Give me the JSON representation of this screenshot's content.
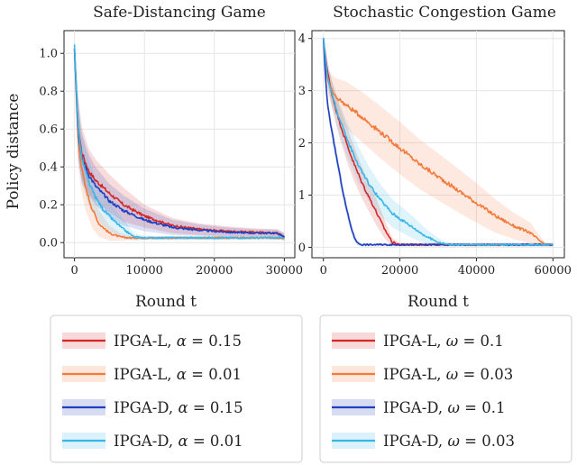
{
  "figure": {
    "y_axis_label": "Policy distance",
    "x_axis_label": "Round t"
  },
  "chart_data": [
    {
      "type": "line",
      "title": "Safe-Distancing Game",
      "xlabel": "Round t",
      "ylabel": "Policy distance",
      "xlim": [
        -1500,
        31500
      ],
      "ylim": [
        -0.08,
        1.12
      ],
      "xticks": [
        0,
        10000,
        20000,
        30000
      ],
      "xtick_labels": [
        "0",
        "10000",
        "20000",
        "30000"
      ],
      "yticks": [
        0.0,
        0.2,
        0.4,
        0.6,
        0.8,
        1.0
      ],
      "ytick_labels": [
        "0.0",
        "0.2",
        "0.4",
        "0.6",
        "0.8",
        "1.0"
      ],
      "grid": true,
      "series": [
        {
          "name": "IPGA-L, α = 0.15",
          "color": "#d62728",
          "x": [
            0,
            500,
            1000,
            2000,
            3000,
            5000,
            7000,
            10000,
            14000,
            18000,
            22000,
            26000,
            29000,
            30000
          ],
          "y": [
            1.02,
            0.62,
            0.48,
            0.38,
            0.33,
            0.26,
            0.2,
            0.14,
            0.09,
            0.07,
            0.06,
            0.055,
            0.05,
            0.03
          ],
          "band": [
            0.03,
            0.16,
            0.14,
            0.12,
            0.11,
            0.1,
            0.09,
            0.06,
            0.04,
            0.03,
            0.025,
            0.02,
            0.02,
            0.02
          ]
        },
        {
          "name": "IPGA-L, α = 0.01",
          "color": "#f4793a",
          "x": [
            0,
            500,
            1000,
            1500,
            2500,
            3500,
            5000,
            6500,
            8000,
            10000,
            30000
          ],
          "y": [
            1.02,
            0.55,
            0.4,
            0.3,
            0.18,
            0.1,
            0.05,
            0.03,
            0.025,
            0.025,
            0.025
          ],
          "band": [
            0.03,
            0.14,
            0.13,
            0.12,
            0.1,
            0.07,
            0.04,
            0.02,
            0.01,
            0.01,
            0.01
          ]
        },
        {
          "name": "IPGA-D, α = 0.15",
          "color": "#1f3fbf",
          "x": [
            0,
            500,
            1000,
            2000,
            3000,
            5000,
            7000,
            10000,
            14000,
            18000,
            22000,
            26000,
            29000,
            30000
          ],
          "y": [
            1.03,
            0.6,
            0.45,
            0.36,
            0.3,
            0.22,
            0.17,
            0.12,
            0.08,
            0.065,
            0.055,
            0.05,
            0.05,
            0.03
          ],
          "band": [
            0.03,
            0.15,
            0.13,
            0.11,
            0.1,
            0.09,
            0.08,
            0.06,
            0.04,
            0.03,
            0.025,
            0.02,
            0.02,
            0.02
          ]
        },
        {
          "name": "IPGA-D, α = 0.01",
          "color": "#36b7e8",
          "x": [
            0,
            500,
            1000,
            2000,
            3000,
            4000,
            5500,
            7000,
            8500,
            10000,
            30000
          ],
          "y": [
            1.05,
            0.62,
            0.45,
            0.32,
            0.24,
            0.18,
            0.12,
            0.07,
            0.03,
            0.025,
            0.025
          ],
          "band": [
            0.03,
            0.15,
            0.13,
            0.12,
            0.1,
            0.09,
            0.07,
            0.05,
            0.02,
            0.01,
            0.01
          ]
        }
      ]
    },
    {
      "type": "line",
      "title": "Stochastic Congestion Game",
      "xlabel": "Round t",
      "ylabel": "Policy distance",
      "xlim": [
        -3000,
        63000
      ],
      "ylim": [
        -0.2,
        4.15
      ],
      "xticks": [
        0,
        20000,
        40000,
        60000
      ],
      "xtick_labels": [
        "0",
        "20000",
        "40000",
        "60000"
      ],
      "yticks": [
        0,
        1,
        2,
        3,
        4
      ],
      "ytick_labels": [
        "0",
        "1",
        "2",
        "3",
        "4"
      ],
      "grid": true,
      "series": [
        {
          "name": "IPGA-L, ω = 0.1",
          "color": "#d62728",
          "x": [
            0,
            1000,
            2000,
            4000,
            6000,
            8000,
            10000,
            12000,
            14000,
            16000,
            18000,
            20000,
            22000,
            60000
          ],
          "y": [
            4.0,
            3.4,
            3.0,
            2.45,
            2.0,
            1.6,
            1.25,
            0.95,
            0.65,
            0.35,
            0.1,
            0.05,
            0.05,
            0.05
          ],
          "band": [
            0.02,
            0.2,
            0.25,
            0.3,
            0.33,
            0.33,
            0.3,
            0.28,
            0.25,
            0.18,
            0.08,
            0.03,
            0.03,
            0.03
          ]
        },
        {
          "name": "IPGA-L, ω = 0.03",
          "color": "#f4793a",
          "x": [
            0,
            1000,
            3000,
            6000,
            10000,
            15000,
            20000,
            25000,
            30000,
            35000,
            40000,
            45000,
            50000,
            54000,
            57000,
            58000,
            60000
          ],
          "y": [
            4.0,
            3.2,
            2.9,
            2.72,
            2.5,
            2.2,
            1.9,
            1.6,
            1.35,
            1.1,
            0.85,
            0.6,
            0.4,
            0.28,
            0.1,
            0.05,
            0.05
          ],
          "band": [
            0.02,
            0.2,
            0.35,
            0.45,
            0.48,
            0.5,
            0.5,
            0.48,
            0.45,
            0.42,
            0.38,
            0.32,
            0.25,
            0.2,
            0.08,
            0.03,
            0.03
          ]
        },
        {
          "name": "IPGA-D, ω = 0.1",
          "color": "#1f3fbf",
          "x": [
            0,
            500,
            1000,
            2000,
            3000,
            4000,
            5000,
            6000,
            7000,
            8000,
            9000,
            10000,
            11000,
            60000
          ],
          "y": [
            4.0,
            3.3,
            2.8,
            2.3,
            1.9,
            1.5,
            1.1,
            0.75,
            0.45,
            0.2,
            0.08,
            0.05,
            0.05,
            0.05
          ],
          "band": [
            0.02,
            0.1,
            0.12,
            0.14,
            0.14,
            0.14,
            0.14,
            0.12,
            0.1,
            0.08,
            0.04,
            0.03,
            0.03,
            0.03
          ]
        },
        {
          "name": "IPGA-D, ω = 0.03",
          "color": "#36b7e8",
          "x": [
            0,
            1000,
            2000,
            4000,
            6000,
            9000,
            12000,
            15000,
            18000,
            21000,
            24000,
            27000,
            30000,
            32000,
            34000,
            36000,
            60000
          ],
          "y": [
            4.0,
            3.3,
            3.0,
            2.5,
            2.1,
            1.6,
            1.2,
            0.9,
            0.65,
            0.5,
            0.35,
            0.2,
            0.1,
            0.06,
            0.05,
            0.05,
            0.05
          ],
          "band": [
            0.02,
            0.2,
            0.25,
            0.3,
            0.33,
            0.35,
            0.33,
            0.3,
            0.27,
            0.24,
            0.2,
            0.14,
            0.08,
            0.04,
            0.03,
            0.03,
            0.03
          ]
        }
      ]
    }
  ],
  "legends": [
    {
      "entries": [
        {
          "prefix": "IPGA-L, ",
          "symbol": "α",
          "value": " = 0.15"
        },
        {
          "prefix": "IPGA-L, ",
          "symbol": "α",
          "value": " = 0.01"
        },
        {
          "prefix": "IPGA-D, ",
          "symbol": "α",
          "value": " = 0.15"
        },
        {
          "prefix": "IPGA-D, ",
          "symbol": "α",
          "value": " = 0.01"
        }
      ]
    },
    {
      "entries": [
        {
          "prefix": "IPGA-L, ",
          "symbol": "ω",
          "value": " = 0.1"
        },
        {
          "prefix": "IPGA-L, ",
          "symbol": "ω",
          "value": " = 0.03"
        },
        {
          "prefix": "IPGA-D, ",
          "symbol": "ω",
          "value": " = 0.1"
        },
        {
          "prefix": "IPGA-D, ",
          "symbol": "ω",
          "value": " = 0.03"
        }
      ]
    }
  ]
}
